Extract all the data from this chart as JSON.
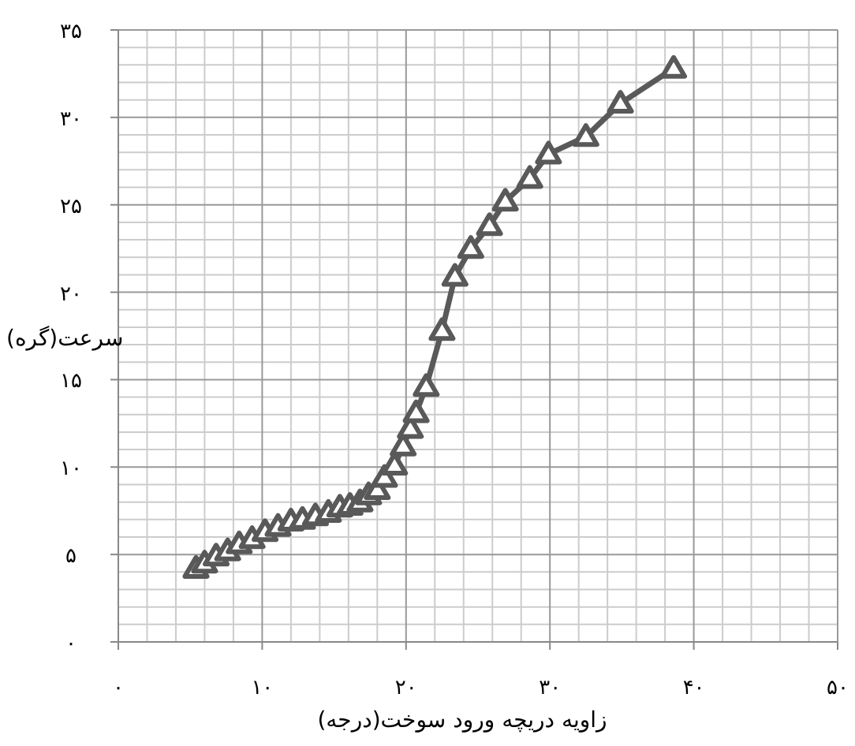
{
  "chart_data": {
    "type": "line",
    "xlabel": "زاویه دریچه ورود سوخت(درجه)",
    "ylabel": "سرعت(گره)",
    "x": [
      5.4,
      6.0,
      6.8,
      7.6,
      8.4,
      9.3,
      10.2,
      11.1,
      12.0,
      12.8,
      13.7,
      14.6,
      15.4,
      16.1,
      16.8,
      17.4,
      18.0,
      18.5,
      19.2,
      19.8,
      20.3,
      20.7,
      21.4,
      22.5,
      23.4,
      24.5,
      25.8,
      26.9,
      28.6,
      29.9,
      32.5,
      34.9,
      38.6
    ],
    "series": [
      {
        "color": "#595959",
        "values": [
          4.2,
          4.5,
          4.9,
          5.2,
          5.6,
          5.9,
          6.3,
          6.6,
          6.9,
          7.0,
          7.2,
          7.4,
          7.7,
          7.8,
          8.0,
          8.4,
          8.7,
          9.4,
          10.1,
          11.2,
          12.2,
          13.1,
          14.6,
          17.8,
          20.9,
          22.5,
          23.8,
          25.2,
          26.5,
          27.9,
          28.9,
          30.8,
          32.8
        ]
      }
    ],
    "xlim": [
      0,
      50
    ],
    "xticks": [
      {
        "value": 0,
        "label": "۰"
      },
      {
        "value": 10,
        "label": "۱۰"
      },
      {
        "value": 20,
        "label": "۲۰"
      },
      {
        "value": 30,
        "label": "۳۰"
      },
      {
        "value": 40,
        "label": "۴۰"
      },
      {
        "value": 50,
        "label": "۵۰"
      }
    ],
    "ylim": [
      0,
      35
    ],
    "yticks": [
      {
        "value": 0,
        "label": "۰"
      },
      {
        "value": 5,
        "label": "۵"
      },
      {
        "value": 10,
        "label": "۱۰"
      },
      {
        "value": 15,
        "label": "۱۵"
      },
      {
        "value": 20,
        "label": "۲۰"
      },
      {
        "value": 25,
        "label": "۲۵"
      },
      {
        "value": 30,
        "label": "۳۰"
      },
      {
        "value": 35,
        "label": "۳۵"
      }
    ],
    "grid": true,
    "marker": "triangle"
  }
}
